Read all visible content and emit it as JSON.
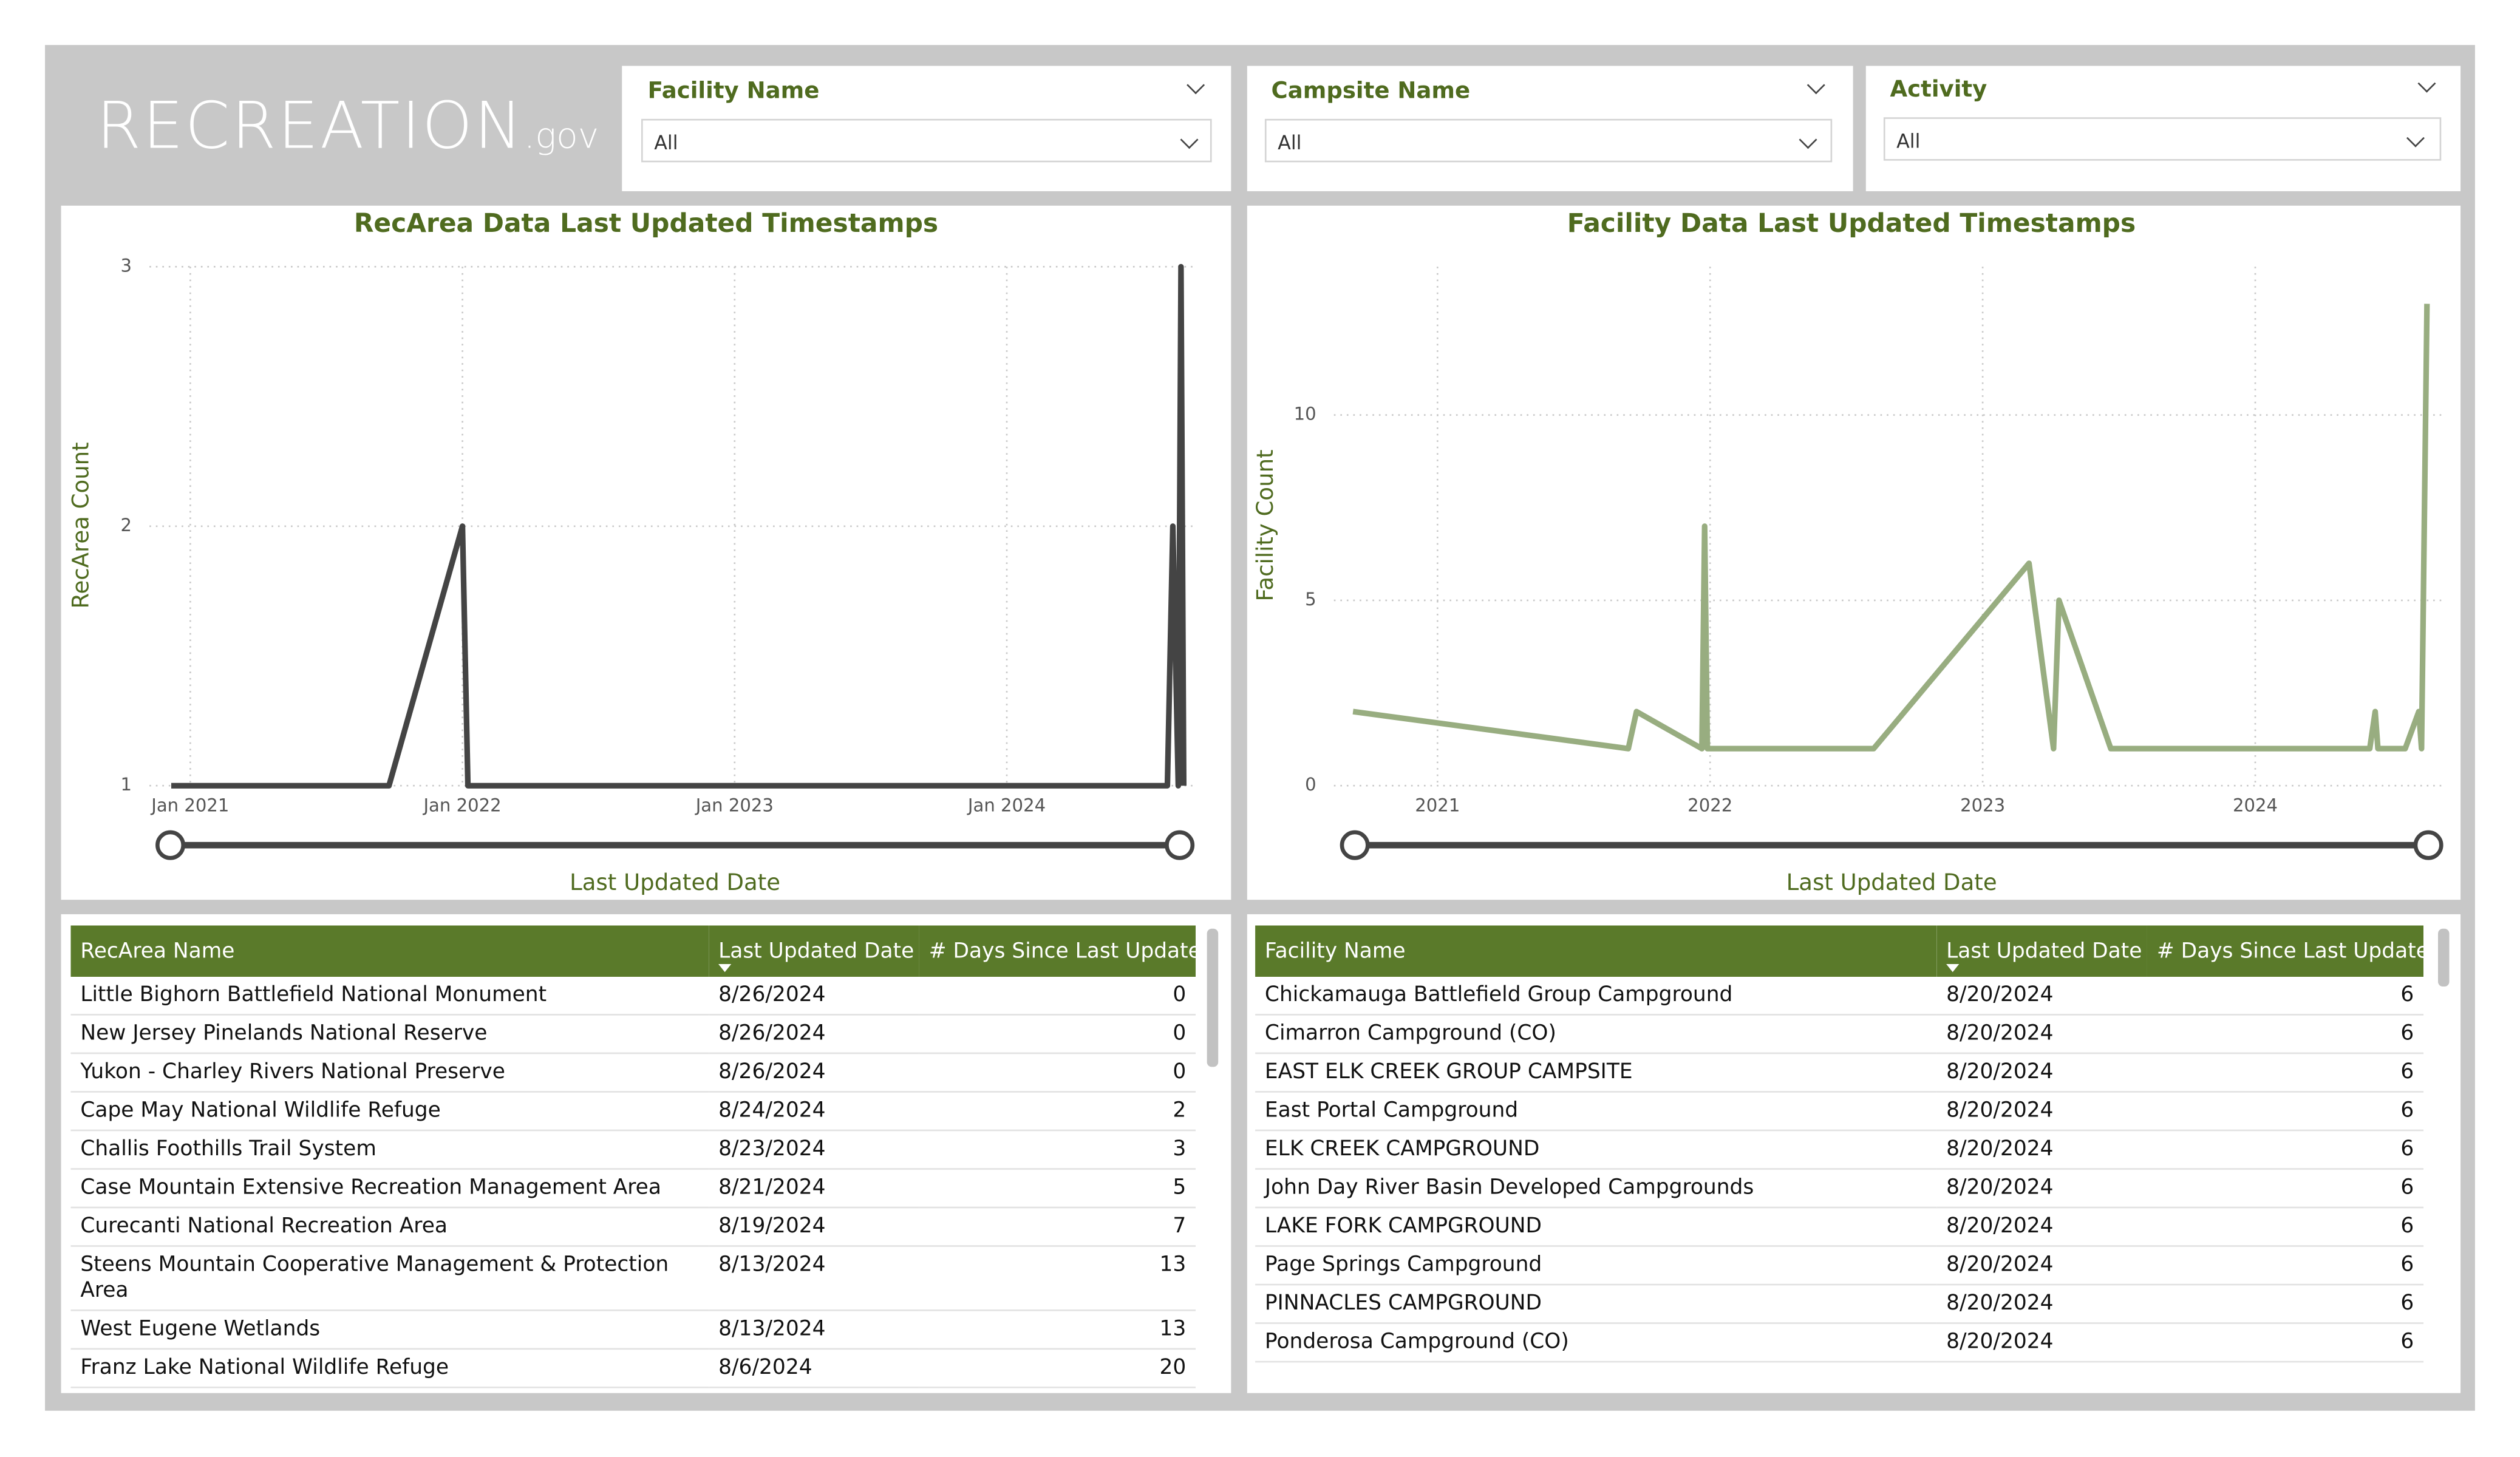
{
  "header": {
    "logo": "RECREATION",
    "logo_suffix": ".gov"
  },
  "filters": [
    {
      "label": "Facility Name",
      "value": "All"
    },
    {
      "label": "Campsite Name",
      "value": "All"
    },
    {
      "label": "Activity",
      "value": "All"
    }
  ],
  "chart_data": [
    {
      "type": "line",
      "title": "RecArea Data Last Updated Timestamps",
      "x_label": "Last Updated Date",
      "y_label": "RecArea Count",
      "x": [
        2020.93,
        2021.73,
        2022.0,
        2022.02,
        2024.59,
        2024.61,
        2024.63,
        2024.64,
        2024.65
      ],
      "values": [
        1,
        1,
        2,
        1,
        1,
        2,
        1,
        3,
        1
      ],
      "color": "#444444",
      "xlim": [
        2020.85,
        2024.7
      ],
      "xticks": [
        {
          "value": 2021,
          "label": "Jan 2021"
        },
        {
          "value": 2022,
          "label": "Jan 2022"
        },
        {
          "value": 2023,
          "label": "Jan 2023"
        },
        {
          "value": 2024,
          "label": "Jan 2024"
        }
      ],
      "ylim": [
        1,
        3
      ],
      "yticks": [
        1,
        2,
        3
      ],
      "grid": true
    },
    {
      "type": "line",
      "title": "Facility Data Last Updated Timestamps",
      "x_label": "Last Updated Date",
      "y_label": "Facility Count",
      "x": [
        2020.69,
        2021.7,
        2021.73,
        2021.97,
        2021.98,
        2021.99,
        2022.6,
        2023.17,
        2023.26,
        2023.28,
        2023.47,
        2024.42,
        2024.44,
        2024.45,
        2024.55,
        2024.6,
        2024.61,
        2024.63
      ],
      "values": [
        2,
        1,
        2,
        1,
        7,
        1,
        1,
        6,
        1,
        5,
        1,
        1,
        2,
        1,
        1,
        2,
        1,
        13
      ],
      "color": "#98ad80",
      "xlim": [
        2020.62,
        2024.7
      ],
      "xticks": [
        2021,
        2022,
        2023,
        2024
      ],
      "ylim": [
        0,
        14
      ],
      "yticks": [
        0,
        5,
        10
      ],
      "grid": true
    }
  ],
  "tables": [
    {
      "columns": [
        "RecArea Name",
        "Last Updated Date",
        "# Days Since Last Update"
      ],
      "rows": [
        [
          "Little Bighorn Battlefield National Monument",
          "8/26/2024",
          0
        ],
        [
          "New Jersey Pinelands National Reserve",
          "8/26/2024",
          0
        ],
        [
          "Yukon - Charley Rivers National Preserve",
          "8/26/2024",
          0
        ],
        [
          "Cape May National Wildlife Refuge",
          "8/24/2024",
          2
        ],
        [
          "Challis Foothills Trail System",
          "8/23/2024",
          3
        ],
        [
          "Case Mountain Extensive Recreation Management Area",
          "8/21/2024",
          5
        ],
        [
          "Curecanti National Recreation Area",
          "8/19/2024",
          7
        ],
        [
          "Steens Mountain Cooperative Management & Protection Area",
          "8/13/2024",
          13
        ],
        [
          "West Eugene Wetlands",
          "8/13/2024",
          13
        ],
        [
          "Franz Lake National Wildlife Refuge",
          "8/6/2024",
          20
        ]
      ]
    },
    {
      "columns": [
        "Facility Name",
        "Last Updated Date",
        "# Days Since Last Update"
      ],
      "rows": [
        [
          "Chickamauga Battlefield Group Campground",
          "8/20/2024",
          6
        ],
        [
          "Cimarron Campground (CO)",
          "8/20/2024",
          6
        ],
        [
          "EAST ELK CREEK GROUP CAMPSITE",
          "8/20/2024",
          6
        ],
        [
          "East Portal Campground",
          "8/20/2024",
          6
        ],
        [
          "ELK CREEK CAMPGROUND",
          "8/20/2024",
          6
        ],
        [
          "John Day River Basin Developed Campgrounds",
          "8/20/2024",
          6
        ],
        [
          "LAKE FORK CAMPGROUND",
          "8/20/2024",
          6
        ],
        [
          "Page Springs Campground",
          "8/20/2024",
          6
        ],
        [
          "PINNACLES CAMPGROUND",
          "8/20/2024",
          6
        ],
        [
          "Ponderosa Campground (CO)",
          "8/20/2024",
          6
        ]
      ]
    }
  ]
}
